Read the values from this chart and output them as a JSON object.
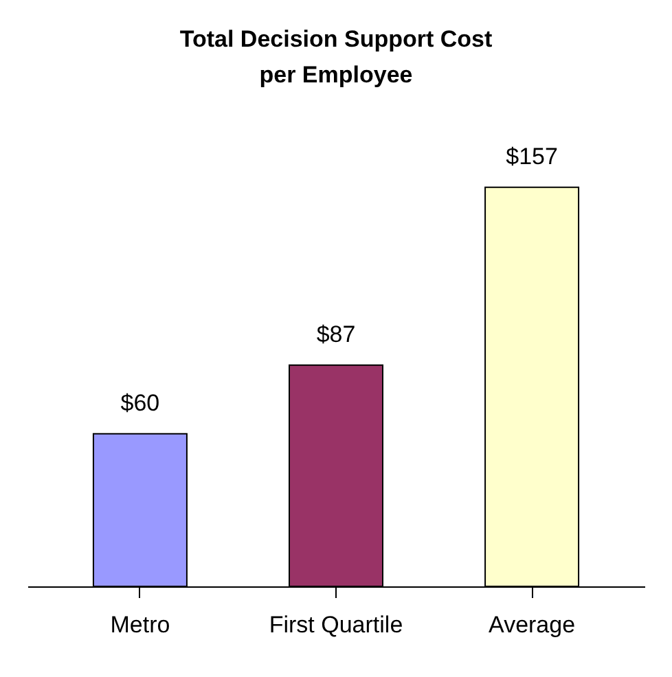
{
  "chart_data": {
    "type": "bar",
    "title": "Total Decision Support Cost per Employee",
    "categories": [
      "Metro",
      "First Quartile",
      "Average"
    ],
    "values": [
      60,
      87,
      157
    ],
    "value_labels": [
      "$60",
      "$87",
      "$157"
    ],
    "colors": [
      "#9999ff",
      "#993366",
      "#ffffcc"
    ]
  }
}
